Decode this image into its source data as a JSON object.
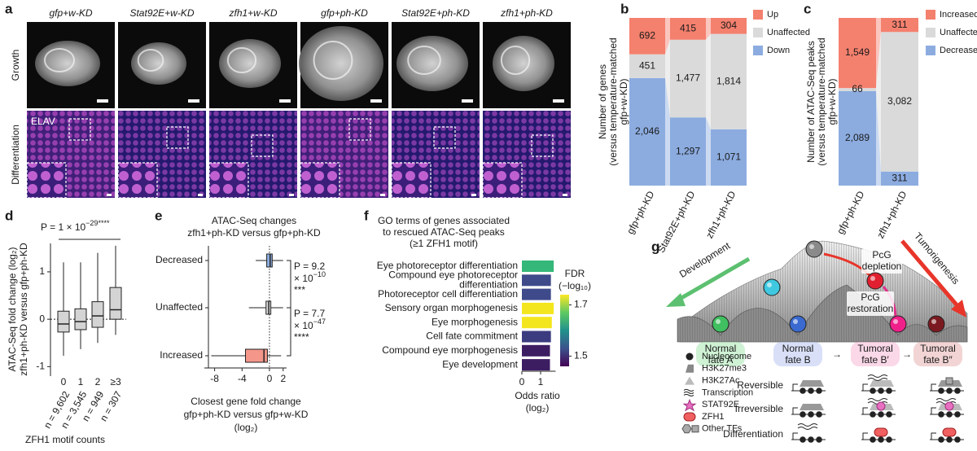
{
  "panel_labels": [
    "a",
    "b",
    "c",
    "d",
    "e",
    "f",
    "g"
  ],
  "panel_a": {
    "columns": [
      "gfp+w-KD",
      "Stat92E+w-KD",
      "zfh1+w-KD",
      "gfp+ph-KD",
      "Stat92E+ph-KD",
      "zfh1+ph-KD"
    ],
    "rows": [
      "Growth",
      "Differentiation"
    ],
    "stain": "ELAV"
  },
  "chart_data": [
    {
      "type": "bar",
      "stacked": true,
      "ylabel": [
        "Number of genes",
        "(versus temperature-matched",
        "gfp+w-KD)"
      ],
      "categories": [
        "gfp+ph-KD",
        "Stat92E+ph-KD",
        "zfh1+ph-KD"
      ],
      "series": [
        {
          "name": "Up",
          "color": "#f4806e",
          "values": [
            692,
            415,
            304
          ],
          "value_labels": [
            "692",
            "415",
            "304"
          ]
        },
        {
          "name": "Unaffected",
          "color": "#dadada",
          "values": [
            451,
            1477,
            1814
          ],
          "value_labels": [
            "451",
            "1,477",
            "1,814"
          ]
        },
        {
          "name": "Down",
          "color": "#8cace0",
          "values": [
            2046,
            1297,
            1071
          ],
          "value_labels": [
            "2,046",
            "1,297",
            "1,071"
          ]
        }
      ]
    },
    {
      "type": "bar",
      "stacked": true,
      "ylabel": [
        "Number of ATAC-Seq peaks",
        "(versus temperature-matched",
        "gfp+w-KD)"
      ],
      "categories": [
        "gfp+ph-KD",
        "zfh1+ph-KD"
      ],
      "series": [
        {
          "name": "Increased",
          "color": "#f4806e",
          "values": [
            1549,
            311
          ],
          "value_labels": [
            "1,549",
            "311"
          ]
        },
        {
          "name": "Unaffected",
          "color": "#dadada",
          "values": [
            66,
            3082
          ],
          "value_labels": [
            "66",
            "3,082"
          ]
        },
        {
          "name": "Decreased",
          "color": "#8cace0",
          "values": [
            2089,
            311
          ],
          "value_labels": [
            "2,089",
            "311"
          ]
        }
      ]
    },
    {
      "type": "box",
      "ylabel": [
        "ATAC-Seq fold change (log₂)",
        "zfh1+ph-KD versus gfp+ph-KD"
      ],
      "xlabel": "ZFH1 motif counts",
      "categories": [
        "0",
        "1",
        "2",
        "≥3"
      ],
      "n_labels": [
        "n = 9,602",
        "n = 3,545",
        "n = 949",
        "n = 307"
      ],
      "boxes": [
        {
          "min": -0.77,
          "q1": -0.27,
          "median": -0.1,
          "q3": 0.17,
          "max": 1.2
        },
        {
          "min": -0.63,
          "q1": -0.22,
          "median": -0.05,
          "q3": 0.22,
          "max": 1.2
        },
        {
          "min": -0.5,
          "q1": -0.17,
          "median": 0.07,
          "q3": 0.37,
          "max": 1.4
        },
        {
          "min": -0.33,
          "q1": 0,
          "median": 0.2,
          "q3": 0.67,
          "max": 1.55
        }
      ],
      "color": "#d4d4d4",
      "ylim": [
        -1.2,
        1.6
      ],
      "yticks": [
        -1,
        0,
        1
      ],
      "reference_line": 0,
      "annotation": {
        "text": "P = 1 × 10",
        "sup": "−29****"
      }
    },
    {
      "type": "box",
      "orientation": "horizontal",
      "title": [
        "ATAC-Seq changes",
        "zfh1+ph-KD versus gfp+ph-KD"
      ],
      "categories": [
        "Decreased",
        "Unaffected",
        "Increased"
      ],
      "boxes": [
        {
          "min": -2,
          "q1": -0.4,
          "median": 0.1,
          "q3": 0.4,
          "max": 2
        },
        {
          "min": -3,
          "q1": -0.5,
          "median": -0.1,
          "q3": 0.2,
          "max": 2
        },
        {
          "min": -8.5,
          "q1": -3.5,
          "median": -0.8,
          "q3": -0.3,
          "max": 1.7
        }
      ],
      "colors": [
        "#8cace0",
        "#d9d9d9",
        "#f4968a"
      ],
      "xlim": [
        -9.5,
        2.5
      ],
      "xticks": [
        -8,
        -4,
        0,
        2
      ],
      "reference_line": 0,
      "xlabel": [
        "Closest gene fold change",
        "gfp+ph-KD versus gfp+w-KD",
        "(log₂)"
      ],
      "annotations": [
        {
          "p": "P = 9.2",
          "base": "× 10",
          "sup": "−10",
          "stars": "***"
        },
        {
          "p": "P = 7.7",
          "base": "× 10",
          "sup": "−47",
          "stars": "****"
        }
      ]
    },
    {
      "type": "bar",
      "orientation": "horizontal",
      "title": [
        "GO terms of genes associated",
        "to rescued ATAC-Seq peaks",
        "(≥1 ZFH1 motif)"
      ],
      "categories": [
        "Eye photoreceptor differentiation",
        "Compound eye photoreceptor differentiation",
        "Photoreceptor cell differentiation",
        "Sensory organ morphogenesis",
        "Eye morphogenesis",
        "Cell fate commitment",
        "Compound eye morphogenesis",
        "Eye development"
      ],
      "values": [
        1.7,
        1.55,
        1.55,
        1.7,
        1.6,
        1.55,
        1.5,
        1.5
      ],
      "colors": [
        "#35b779",
        "#3e4a89",
        "#3e4a89",
        "#f4e61e",
        "#f4e61e",
        "#3b3c80",
        "#3d1d62",
        "#3d1d62"
      ],
      "xlim": [
        0,
        1.8
      ],
      "xticks": [
        0,
        1
      ],
      "xlabel": [
        "Odds ratio",
        "(log₂)"
      ],
      "colorbar": {
        "title": [
          "FDR",
          "(−log₁₀)"
        ],
        "range": [
          1.46,
          1.74
        ],
        "ticks": [
          1.5,
          1.7
        ],
        "colors": [
          "#440154",
          "#3b528b",
          "#21918c",
          "#5ec962",
          "#fde725"
        ]
      }
    }
  ],
  "panel_g": {
    "arrows": [
      "Development",
      "Tumorigenesis"
    ],
    "steps": [
      [
        "PcG",
        "depletion"
      ],
      [
        "PcG",
        "restoration"
      ]
    ],
    "fates": [
      [
        "Normal",
        "fate A"
      ],
      [
        "Normal",
        "fate B"
      ],
      [
        "Tumoral",
        "fate B′"
      ],
      [
        "Tumoral",
        "fate B″"
      ]
    ],
    "fate_arrows": [
      "→",
      "→"
    ],
    "legend": [
      "Nucleosome",
      "H3K27me3",
      "H3K27Ac",
      "Transcription",
      "STAT92E",
      "ZFH1",
      "Other TFs"
    ],
    "rows": [
      "Reversible",
      "Irreversible",
      "Differentiation"
    ]
  }
}
